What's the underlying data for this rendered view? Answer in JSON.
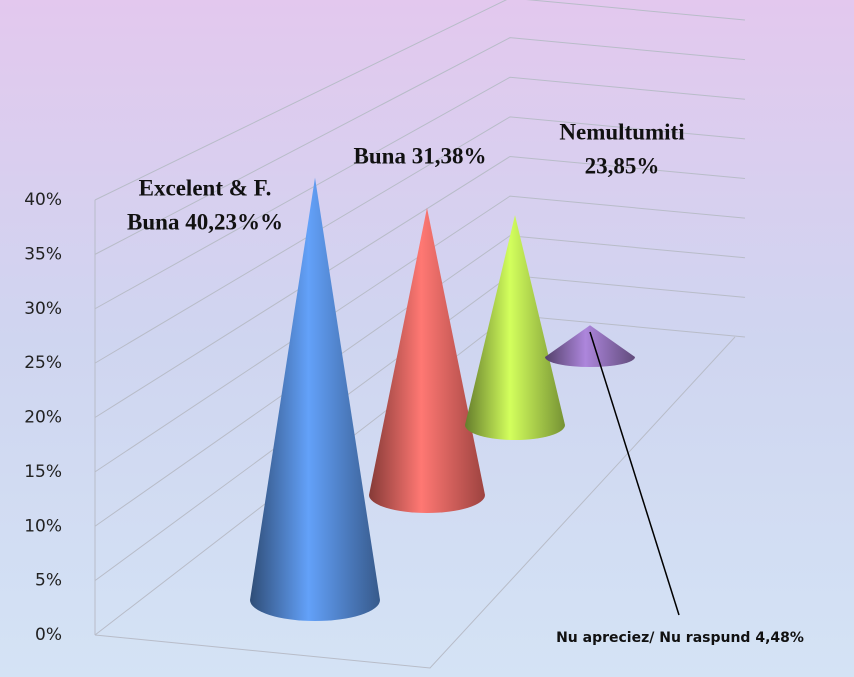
{
  "chart_data": {
    "type": "cone",
    "values": [
      40.23,
      31.38,
      23.85,
      4.48
    ],
    "value_labels": [
      [
        "Excelent & F.",
        "Buna 40,23%%"
      ],
      [
        "Buna 31,38%"
      ],
      [
        "Nemultumiti",
        "23,85%"
      ],
      [
        "Nu apreciez/ Nu raspund 4,48%"
      ]
    ],
    "colors": [
      "#4f81c7",
      "#e0605c",
      "#a9d04a",
      "#8a6bb0"
    ],
    "ylim": [
      0,
      40
    ],
    "yticks": [
      {
        "value": 0,
        "label": "0%"
      },
      {
        "value": 5,
        "label": "5%"
      },
      {
        "value": 10,
        "label": "10%"
      },
      {
        "value": 15,
        "label": "15%"
      },
      {
        "value": 20,
        "label": "20%"
      },
      {
        "value": 25,
        "label": "25%"
      },
      {
        "value": 30,
        "label": "30%"
      },
      {
        "value": 35,
        "label": "35%"
      },
      {
        "value": 40,
        "label": "40%"
      }
    ],
    "grid": true
  }
}
